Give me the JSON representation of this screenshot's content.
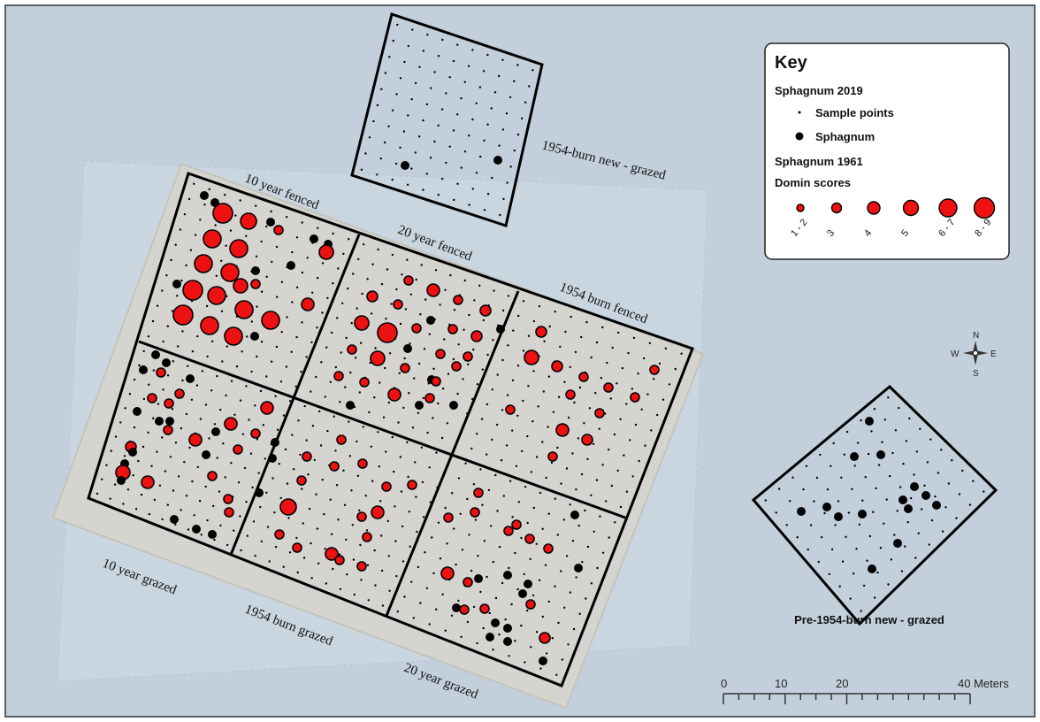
{
  "map": {
    "background": "#c3d0dc",
    "hillshade": "#d7d6d1",
    "red": "#ee1111",
    "black": "#000000"
  },
  "plots": {
    "top": "1954-burn new - grazed",
    "ten_fenced": "10 year fenced",
    "twenty_fenced": "20 year fenced",
    "burn_fenced": "1954 burn fenced",
    "ten_grazed": "10 year grazed",
    "burn_grazed": "1954 burn grazed",
    "twenty_grazed": "20 year grazed",
    "right": "Pre-1954-burn new - grazed"
  },
  "key": {
    "title": "Key",
    "sphagnum_2019": "Sphagnum 2019",
    "sample_points": "Sample points",
    "sphagnum": "Sphagnum",
    "sphagnum_1961": "Sphagnum 1961",
    "domin_scores": "Domin scores",
    "classes": [
      "1 - 2",
      "3",
      "4",
      "5",
      "6 - 7",
      "8 - 9"
    ]
  },
  "compass": {
    "n": "N",
    "s": "S",
    "e": "E",
    "w": "W"
  },
  "scale": {
    "ticks": [
      "0",
      "10",
      "20",
      "40 Meters"
    ]
  }
}
